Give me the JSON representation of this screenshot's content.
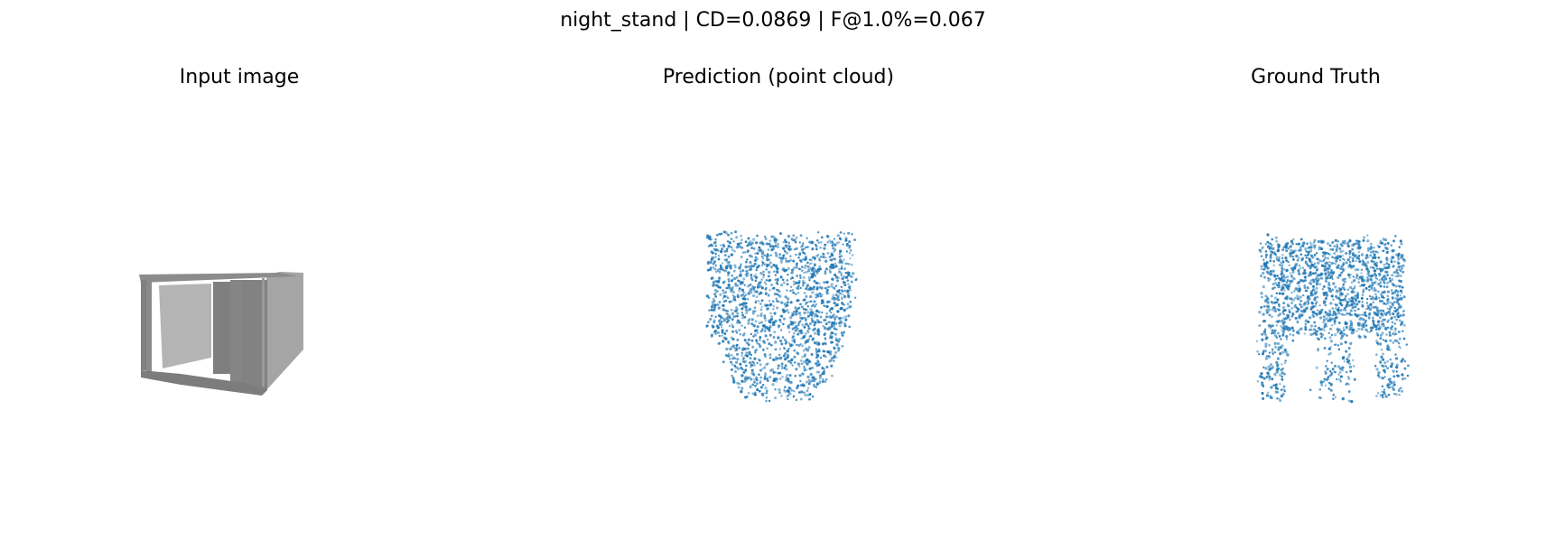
{
  "figure": {
    "suptitle": "night_stand | CD=0.0869 | F@1.0%=0.067",
    "panels": [
      {
        "title": "Input image"
      },
      {
        "title": "Prediction (point cloud)"
      },
      {
        "title": "Ground Truth"
      }
    ]
  },
  "colors": {
    "points": "#1f77b4",
    "render_dark": "#7f7f7f",
    "render_mid": "#8c8c8c",
    "render_light": "#b4b4b4",
    "render_side": "#a5a5a5"
  }
}
